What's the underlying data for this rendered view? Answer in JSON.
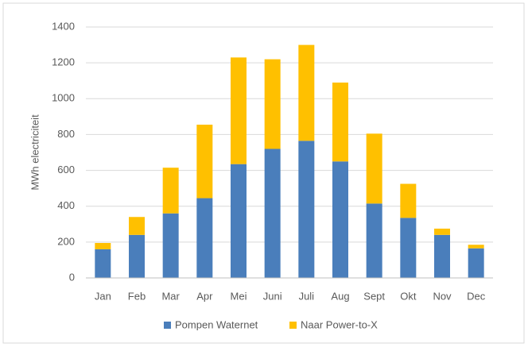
{
  "chart_data": {
    "type": "stacked_bar",
    "y_label": "MWh electriciteit",
    "categories": [
      "Jan",
      "Feb",
      "Mar",
      "Apr",
      "Mei",
      "Juni",
      "Juli",
      "Aug",
      "Sept",
      "Okt",
      "Nov",
      "Dec"
    ],
    "series": [
      {
        "name": "Pompen Waternet",
        "color": "#4a7ebb",
        "values": [
          160,
          240,
          360,
          445,
          635,
          720,
          765,
          650,
          415,
          335,
          240,
          165
        ]
      },
      {
        "name": "Naar Power-to-X",
        "color": "#ffc000",
        "values": [
          35,
          100,
          255,
          410,
          595,
          500,
          535,
          440,
          390,
          190,
          35,
          20
        ]
      }
    ],
    "ylim": [
      0,
      1400
    ],
    "yticks": [
      0,
      200,
      400,
      600,
      800,
      1000,
      1200,
      1400
    ],
    "grid": true,
    "legend": "bottom"
  }
}
